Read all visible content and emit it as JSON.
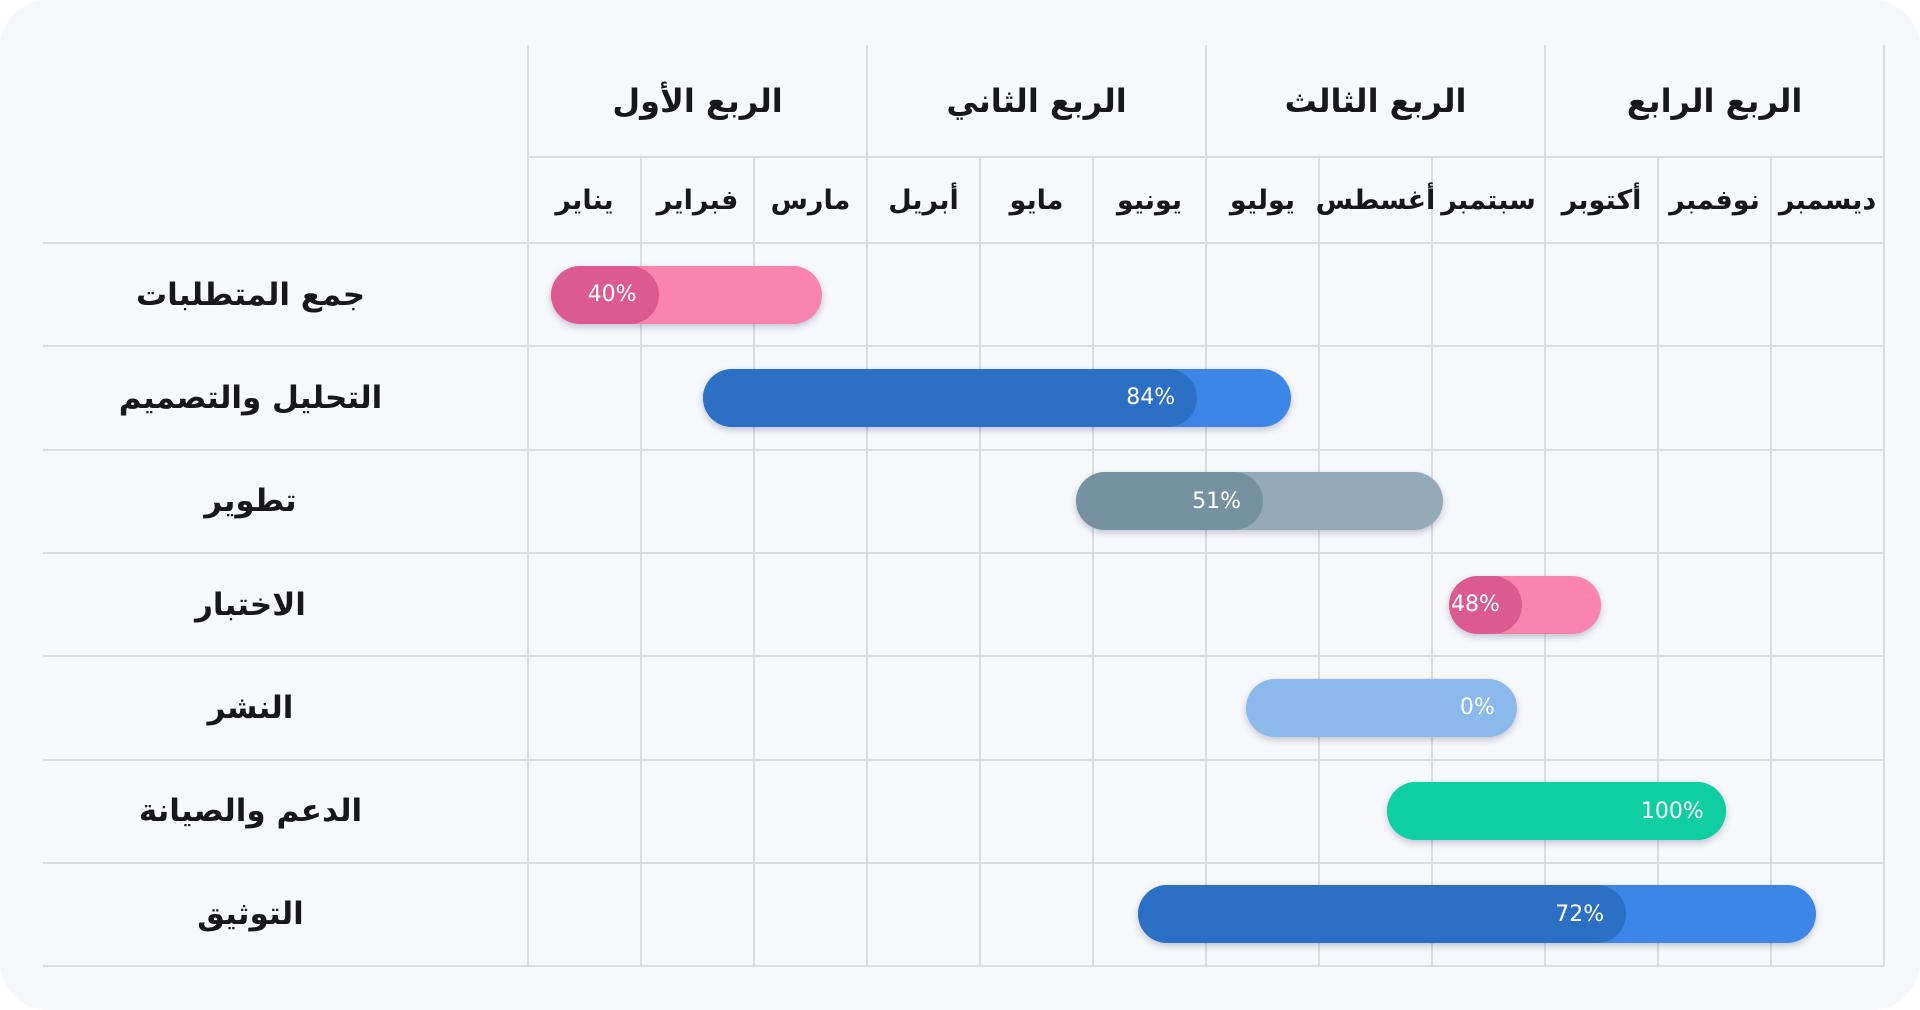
{
  "colors": {
    "card_background": "#F7F8FC",
    "grid_line": "#DBDBE1",
    "header_text": "#17171C",
    "bar_label_text": "#FFFFFF"
  },
  "chart_data": {
    "type": "gantt",
    "quarters": [
      "الربع الأول",
      "الربع الثاني",
      "الربع الثالث",
      "الربع الرابع"
    ],
    "months": [
      "يناير",
      "فبراير",
      "مارس",
      "أبريل",
      "مايو",
      "يونيو",
      "يوليو",
      "أغسطس",
      "سبتمبر",
      "أكتوبر",
      "نوفمبر",
      "ديسمبر"
    ],
    "month_axis_range": [
      0,
      12
    ],
    "grid": true,
    "tasks": [
      {
        "label": "جمع المتطلبات",
        "start_month": 0.2,
        "end_month": 2.6,
        "percent": 40,
        "percent_label": "40%",
        "track_color": "#F984AE",
        "fill_color": "#DB5B8E"
      },
      {
        "label": "التحليل والتصميم",
        "start_month": 1.55,
        "end_month": 6.75,
        "percent": 84,
        "percent_label": "84%",
        "track_color": "#3C86E8",
        "fill_color": "#2C70C5"
      },
      {
        "label": "تطوير",
        "start_month": 4.85,
        "end_month": 8.1,
        "percent": 51,
        "percent_label": "51%",
        "track_color": "#94AAB7",
        "fill_color": "#76919F"
      },
      {
        "label": "الاختبار",
        "start_month": 8.15,
        "end_month": 9.5,
        "percent": 48,
        "percent_label": "48%",
        "track_color": "#F984AE",
        "fill_color": "#DB5B8E"
      },
      {
        "label": "النشر",
        "start_month": 6.35,
        "end_month": 8.75,
        "percent": 0,
        "percent_label": "0%",
        "track_color": "#8CB9EB",
        "fill_color": "#8CB9EB"
      },
      {
        "label": "الدعم والصيانة",
        "start_month": 7.6,
        "end_month": 10.6,
        "percent": 100,
        "percent_label": "100%",
        "track_color": "#0FCEA2",
        "fill_color": "#0FCEA2"
      },
      {
        "label": "التوثيق",
        "start_month": 5.4,
        "end_month": 11.4,
        "percent": 72,
        "percent_label": "72%",
        "track_color": "#3C86E8",
        "fill_color": "#2C70C5"
      }
    ]
  }
}
